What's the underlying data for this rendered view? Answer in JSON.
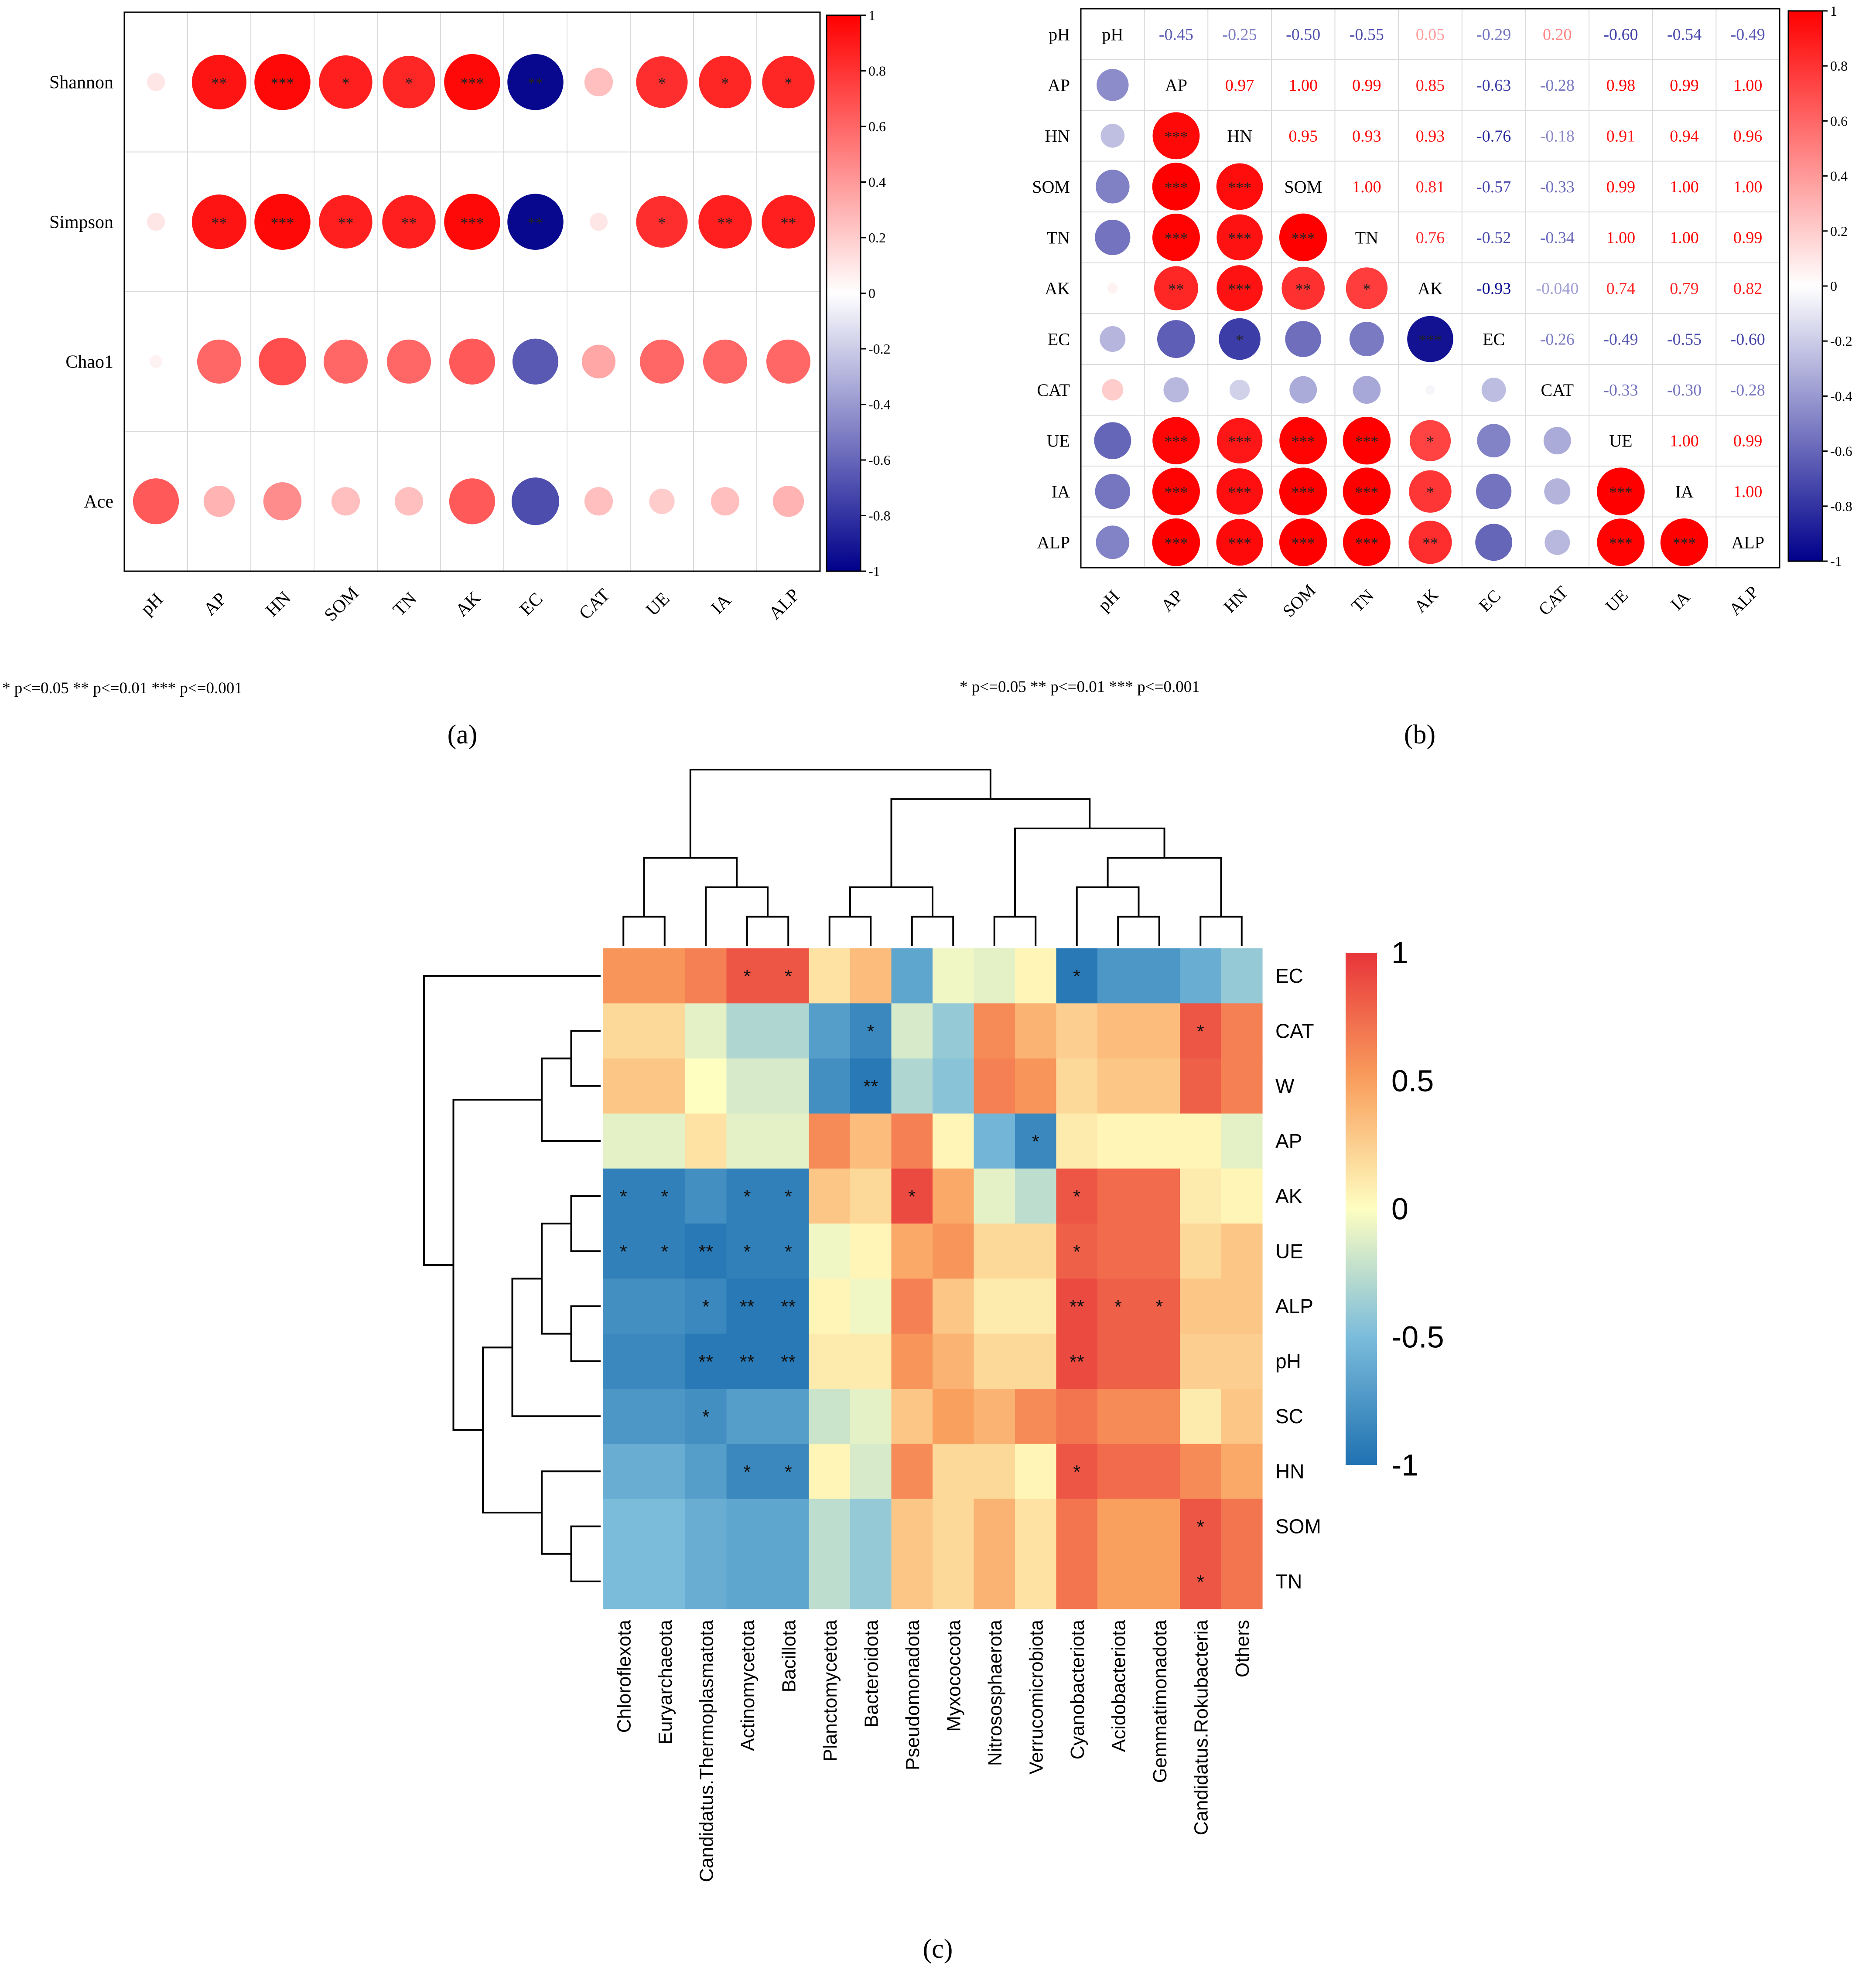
{
  "chart_data": [
    {
      "panel": "a",
      "type": "scatter",
      "subtype": "correlation-bubble-matrix",
      "panel_label": "(a)",
      "rows": [
        "Shannon",
        "Simpson",
        "Chao1",
        "Ace"
      ],
      "cols": [
        "pH",
        "AP",
        "HN",
        "SOM",
        "TN",
        "AK",
        "EC",
        "CAT",
        "UE",
        "IA",
        "ALP"
      ],
      "values": [
        [
          0.1,
          0.92,
          0.97,
          0.88,
          0.85,
          0.97,
          -0.97,
          0.25,
          0.82,
          0.85,
          0.85
        ],
        [
          0.1,
          0.92,
          0.97,
          0.88,
          0.88,
          0.97,
          -0.97,
          0.1,
          0.82,
          0.88,
          0.88
        ],
        [
          0.05,
          0.6,
          0.7,
          0.6,
          0.6,
          0.65,
          -0.65,
          0.35,
          0.6,
          0.6,
          0.6
        ],
        [
          0.65,
          0.3,
          0.45,
          0.25,
          0.25,
          0.65,
          -0.7,
          0.25,
          0.2,
          0.25,
          0.3
        ]
      ],
      "significance": [
        [
          "",
          "**",
          "***",
          "*",
          "*",
          "***",
          "**",
          "",
          "*",
          "*",
          "*"
        ],
        [
          "",
          "**",
          "***",
          "**",
          "**",
          "***",
          "**",
          "",
          "*",
          "**",
          "**"
        ],
        [
          "",
          "",
          "",
          "",
          "",
          "",
          "",
          "",
          "",
          "",
          ""
        ],
        [
          "",
          "",
          "",
          "",
          "",
          "",
          "",
          "",
          "",
          "",
          ""
        ]
      ],
      "colorbar": {
        "range": [
          -1,
          1
        ],
        "ticks": [
          "1",
          "0.8",
          "0.6",
          "0.4",
          "0.2",
          "0",
          "-0.2",
          "-0.4",
          "-0.6",
          "-0.8",
          "-1"
        ]
      },
      "footnote": "* p<=0.05  ** p<=0.01  *** p<=0.001"
    },
    {
      "panel": "b",
      "type": "heatmap",
      "subtype": "correlation-matrix-mixed",
      "panel_label": "(b)",
      "variables": [
        "pH",
        "AP",
        "HN",
        "SOM",
        "TN",
        "AK",
        "EC",
        "CAT",
        "UE",
        "IA",
        "ALP"
      ],
      "upper_values": {
        "pH": {
          "AP": -0.45,
          "HN": -0.25,
          "SOM": -0.5,
          "TN": -0.55,
          "AK": 0.05,
          "EC": -0.29,
          "CAT": 0.2,
          "UE": -0.6,
          "IA": -0.54,
          "ALP": -0.49
        },
        "AP": {
          "HN": 0.97,
          "SOM": 1.0,
          "TN": 0.99,
          "AK": 0.85,
          "EC": -0.63,
          "CAT": -0.28,
          "UE": 0.98,
          "IA": 0.99,
          "ALP": 1.0
        },
        "HN": {
          "SOM": 0.95,
          "TN": 0.93,
          "AK": 0.93,
          "EC": -0.76,
          "CAT": -0.18,
          "UE": 0.91,
          "IA": 0.94,
          "ALP": 0.96
        },
        "SOM": {
          "TN": 1.0,
          "AK": 0.81,
          "EC": -0.57,
          "CAT": -0.33,
          "UE": 0.99,
          "IA": 1.0,
          "ALP": 1.0
        },
        "TN": {
          "AK": 0.76,
          "EC": -0.52,
          "CAT": -0.34,
          "UE": 1.0,
          "IA": 1.0,
          "ALP": 0.99
        },
        "AK": {
          "EC": -0.93,
          "CAT": -0.04,
          "UE": 0.74,
          "IA": 0.79,
          "ALP": 0.82
        },
        "EC": {
          "CAT": -0.26,
          "UE": -0.49,
          "IA": -0.55,
          "ALP": -0.6
        },
        "CAT": {
          "UE": -0.33,
          "IA": -0.3,
          "ALP": -0.28
        },
        "UE": {
          "IA": 1.0,
          "ALP": 0.99
        },
        "IA": {
          "ALP": 1.0
        }
      },
      "upper_labels": {
        "pH": {
          "AP": "-0.45",
          "HN": "-0.25",
          "SOM": "-0.50",
          "TN": "-0.55",
          "AK": "0.05",
          "EC": "-0.29",
          "CAT": "0.20",
          "UE": "-0.60",
          "IA": "-0.54",
          "ALP": "-0.49"
        },
        "AP": {
          "HN": "0.97",
          "SOM": "1.00",
          "TN": "0.99",
          "AK": "0.85",
          "EC": "-0.63",
          "CAT": "-0.28",
          "UE": "0.98",
          "IA": "0.99",
          "ALP": "1.00"
        },
        "HN": {
          "SOM": "0.95",
          "TN": "0.93",
          "AK": "0.93",
          "EC": "-0.76",
          "CAT": "-0.18",
          "UE": "0.91",
          "IA": "0.94",
          "ALP": "0.96"
        },
        "SOM": {
          "TN": "1.00",
          "AK": "0.81",
          "EC": "-0.57",
          "CAT": "-0.33",
          "UE": "0.99",
          "IA": "1.00",
          "ALP": "1.00"
        },
        "TN": {
          "AK": "0.76",
          "EC": "-0.52",
          "CAT": "-0.34",
          "UE": "1.00",
          "IA": "1.00",
          "ALP": "0.99"
        },
        "AK": {
          "EC": "-0.93",
          "CAT": "-0.040",
          "UE": "0.74",
          "IA": "0.79",
          "ALP": "0.82"
        },
        "EC": {
          "CAT": "-0.26",
          "UE": "-0.49",
          "IA": "-0.55",
          "ALP": "-0.60"
        },
        "CAT": {
          "UE": "-0.33",
          "IA": "-0.30",
          "ALP": "-0.28"
        },
        "UE": {
          "IA": "1.00",
          "ALP": "0.99"
        },
        "IA": {
          "ALP": "1.00"
        }
      },
      "lower_significance": {
        "HN": {
          "AP": "***"
        },
        "SOM": {
          "AP": "***",
          "HN": "***"
        },
        "TN": {
          "AP": "***",
          "HN": "***",
          "SOM": "***"
        },
        "AK": {
          "AP": "**",
          "HN": "***",
          "SOM": "**",
          "TN": "*"
        },
        "EC": {
          "HN": "*",
          "AK": "***"
        },
        "UE": {
          "AP": "***",
          "HN": "***",
          "SOM": "***",
          "TN": "***",
          "AK": "*"
        },
        "IA": {
          "AP": "***",
          "HN": "***",
          "SOM": "***",
          "TN": "***",
          "AK": "*",
          "UE": "***"
        },
        "ALP": {
          "AP": "***",
          "HN": "***",
          "SOM": "***",
          "TN": "***",
          "AK": "**",
          "UE": "***",
          "IA": "***"
        }
      },
      "colorbar": {
        "range": [
          -1,
          1
        ],
        "ticks": [
          "1",
          "0.8",
          "0.6",
          "0.4",
          "0.2",
          "0",
          "-0.2",
          "-0.4",
          "-0.6",
          "-0.8",
          "-1"
        ]
      },
      "footnote": "* p<=0.05  ** p<=0.01  *** p<=0.001"
    },
    {
      "panel": "c",
      "type": "heatmap",
      "subtype": "clustered-heatmap",
      "panel_label": "(c)",
      "rows": [
        "EC",
        "CAT",
        "W",
        "AP",
        "AK",
        "UE",
        "ALP",
        "pH",
        "SC",
        "HN",
        "SOM",
        "TN"
      ],
      "cols": [
        "Chloroflexota",
        "Euryarchaeota",
        "Candidatus.Thermoplasmatota",
        "Actinomycetota",
        "Bacillota",
        "Planctomycetota",
        "Bacteroidota",
        "Pseudomonadota",
        "Myxococcota",
        "Nitrososphaerota",
        "Verrucomicrobiota",
        "Cyanobacteriota",
        "Acidobacteriota",
        "Gemmatimonadota",
        "Candidatus.Rokubacteria",
        "Others"
      ],
      "values": [
        [
          0.55,
          0.55,
          0.65,
          0.85,
          0.85,
          0.15,
          0.35,
          -0.65,
          -0.05,
          -0.1,
          0.05,
          -0.95,
          -0.75,
          -0.75,
          -0.6,
          -0.4
        ],
        [
          0.2,
          0.2,
          -0.1,
          -0.3,
          -0.3,
          -0.7,
          -0.85,
          -0.15,
          -0.4,
          0.6,
          0.4,
          0.25,
          0.35,
          0.35,
          0.85,
          0.65
        ],
        [
          0.3,
          0.3,
          0.0,
          -0.15,
          -0.15,
          -0.8,
          -0.95,
          -0.3,
          -0.45,
          0.65,
          0.55,
          0.2,
          0.3,
          0.3,
          0.8,
          0.65
        ],
        [
          -0.1,
          -0.1,
          0.15,
          -0.1,
          -0.1,
          0.6,
          0.35,
          0.65,
          0.05,
          -0.55,
          -0.85,
          0.1,
          0.05,
          0.05,
          0.05,
          -0.1
        ],
        [
          -0.9,
          -0.9,
          -0.8,
          -0.9,
          -0.9,
          0.3,
          0.2,
          0.9,
          0.45,
          -0.1,
          -0.25,
          0.85,
          0.75,
          0.75,
          0.1,
          0.05
        ],
        [
          -0.9,
          -0.9,
          -0.95,
          -0.9,
          -0.9,
          -0.05,
          0.05,
          0.45,
          0.55,
          0.2,
          0.2,
          0.8,
          0.75,
          0.75,
          0.2,
          0.3
        ],
        [
          -0.8,
          -0.8,
          -0.85,
          -0.95,
          -0.95,
          0.05,
          -0.05,
          0.65,
          0.3,
          0.1,
          0.1,
          0.9,
          0.8,
          0.8,
          0.3,
          0.3
        ],
        [
          -0.85,
          -0.85,
          -0.95,
          -0.95,
          -0.95,
          0.1,
          0.1,
          0.55,
          0.4,
          0.2,
          0.2,
          0.9,
          0.8,
          0.8,
          0.25,
          0.25
        ],
        [
          -0.75,
          -0.75,
          -0.8,
          -0.7,
          -0.7,
          -0.2,
          -0.1,
          0.3,
          0.5,
          0.4,
          0.6,
          0.7,
          0.6,
          0.6,
          0.1,
          0.3
        ],
        [
          -0.6,
          -0.6,
          -0.7,
          -0.85,
          -0.85,
          0.05,
          -0.15,
          0.6,
          0.2,
          0.2,
          0.05,
          0.85,
          0.75,
          0.75,
          0.6,
          0.45
        ],
        [
          -0.5,
          -0.5,
          -0.6,
          -0.65,
          -0.65,
          -0.25,
          -0.4,
          0.3,
          0.2,
          0.4,
          0.15,
          0.7,
          0.5,
          0.5,
          0.85,
          0.7
        ],
        [
          -0.5,
          -0.5,
          -0.6,
          -0.65,
          -0.65,
          -0.25,
          -0.4,
          0.3,
          0.2,
          0.4,
          0.15,
          0.7,
          0.5,
          0.5,
          0.85,
          0.7
        ]
      ],
      "significance": [
        [
          "",
          "",
          "",
          "*",
          "*",
          "",
          "",
          "",
          "",
          "",
          "",
          "*",
          "",
          "",
          "",
          ""
        ],
        [
          "",
          "",
          "",
          "",
          "",
          "",
          "*",
          "",
          "",
          "",
          "",
          "",
          "",
          "",
          "*",
          ""
        ],
        [
          "",
          "",
          "",
          "",
          "",
          "",
          "**",
          "",
          "",
          "",
          "",
          "",
          "",
          "",
          "",
          ""
        ],
        [
          "",
          "",
          "",
          "",
          "",
          "",
          "",
          "",
          "",
          "",
          "*",
          "",
          "",
          "",
          "",
          ""
        ],
        [
          "*",
          "*",
          "",
          "*",
          "*",
          "",
          "",
          "*",
          "",
          "",
          "",
          "*",
          "",
          "",
          "",
          ""
        ],
        [
          "*",
          "*",
          "**",
          "*",
          "*",
          "",
          "",
          "",
          "",
          "",
          "",
          "*",
          "",
          "",
          "",
          ""
        ],
        [
          "",
          "",
          "*",
          "**",
          "**",
          "",
          "",
          "",
          "",
          "",
          "",
          "**",
          "*",
          "*",
          "",
          ""
        ],
        [
          "",
          "",
          "**",
          "**",
          "**",
          "",
          "",
          "",
          "",
          "",
          "",
          "**",
          "",
          "",
          "",
          ""
        ],
        [
          "",
          "",
          "*",
          "",
          "",
          "",
          "",
          "",
          "",
          "",
          "",
          "",
          "",
          "",
          "",
          ""
        ],
        [
          "",
          "",
          "",
          "*",
          "*",
          "",
          "",
          "",
          "",
          "",
          "",
          "*",
          "",
          "",
          "",
          ""
        ],
        [
          "",
          "",
          "",
          "",
          "",
          "",
          "",
          "",
          "",
          "",
          "",
          "",
          "",
          "",
          "*",
          ""
        ],
        [
          "",
          "",
          "",
          "",
          "",
          "",
          "",
          "",
          "",
          "",
          "",
          "",
          "",
          "",
          "*",
          ""
        ]
      ],
      "row_tree": [
        "EC",
        [
          [
            [
              "CAT",
              "W"
            ],
            "AP"
          ],
          [
            [
              [
                [
                  "AK",
                  "UE"
                ],
                [
                  "ALP",
                  "pH"
                ]
              ],
              "SC"
            ],
            [
              "HN",
              [
                "SOM",
                "TN"
              ]
            ]
          ]
        ]
      ],
      "col_tree": [
        [
          [
            "Chloroflexota",
            "Euryarchaeota"
          ],
          [
            "Candidatus.Thermoplasmatota",
            [
              "Actinomycetota",
              "Bacillota"
            ]
          ]
        ],
        [
          [
            [
              "Planctomycetota",
              "Bacteroidota"
            ],
            [
              "Pseudomonadota",
              "Myxococcota"
            ]
          ],
          [
            [
              "Nitrososphaerota",
              "Verrucomicrobiota"
            ],
            [
              [
                "Cyanobacteriota",
                [
                  "Acidobacteriota",
                  "Gemmatimonadota"
                ]
              ],
              [
                "Candidatus.Rokubacteria",
                "Others"
              ]
            ]
          ]
        ]
      ],
      "colorbar": {
        "range": [
          -1,
          1
        ],
        "ticks": [
          "1",
          "0.5",
          "0",
          "-0.5",
          "-1"
        ]
      }
    }
  ]
}
